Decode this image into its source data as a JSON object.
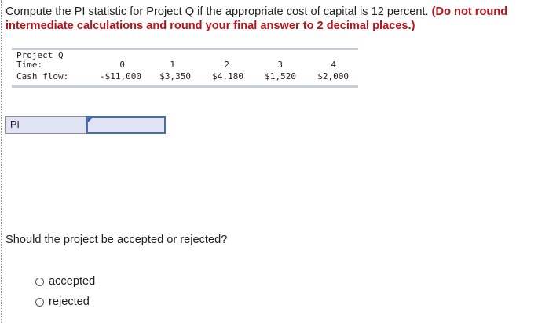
{
  "question": {
    "text": "Compute the PI statistic for Project Q if the appropriate cost of capital is 12 percent.",
    "instruction": "(Do not round intermediate calculations and round your final answer to 2 decimal places.)"
  },
  "cash_flow_table": {
    "project_label": "Project Q",
    "time_label": "Time:",
    "cashflow_label": "Cash flow:",
    "periods": [
      "0",
      "1",
      "2",
      "3",
      "4"
    ],
    "cash_flows": [
      "-$11,000",
      "$3,350",
      "$4,180",
      "$1,520",
      "$2,000"
    ]
  },
  "answer": {
    "pi_label": "PI",
    "pi_value": ""
  },
  "decision": {
    "question": "Should the project be accepted or rejected?",
    "options": [
      "accepted",
      "rejected"
    ]
  },
  "colors": {
    "emphasis_red": "#b5121b",
    "table_bar": "#c9cdd6",
    "input_bg": "#dfe3f4",
    "input_border": "#4a6fa5"
  }
}
